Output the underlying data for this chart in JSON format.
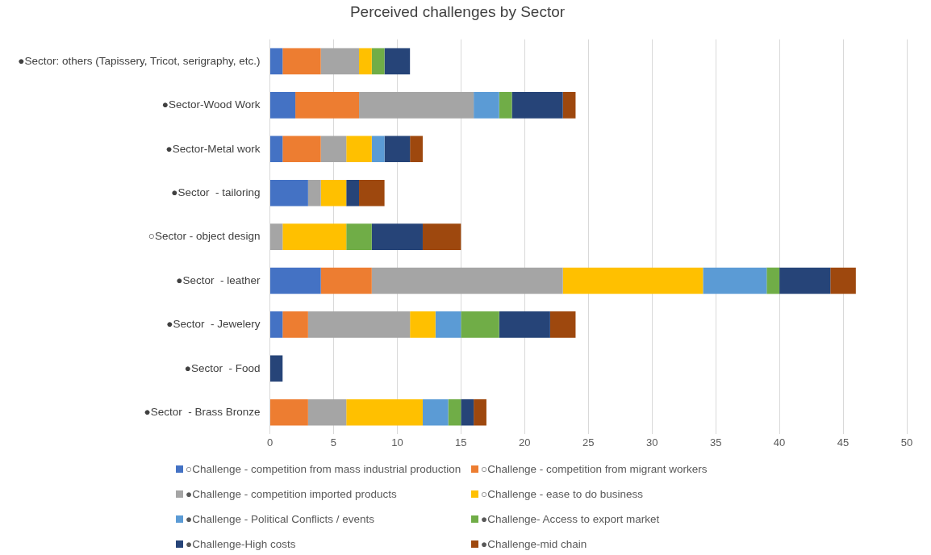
{
  "chart_data": {
    "type": "bar",
    "title": "Perceived challenges by Sector",
    "orientation": "horizontal",
    "stacked": true,
    "grid": "x",
    "legend": "bottom",
    "categories": [
      "●Sector: others (Tapissery, Tricot, serigraphy, etc.)",
      "●Sector-Wood Work",
      "●Sector-Metal work",
      "●Sector  - tailoring",
      "○Sector - object design",
      "●Sector  - leather",
      "●Sector  - Jewelery",
      "●Sector  - Food",
      "●Sector  - Brass Bronze"
    ],
    "xlim": [
      0,
      50
    ],
    "xticks": [
      0,
      5,
      10,
      15,
      20,
      25,
      30,
      35,
      40,
      45,
      50
    ],
    "series": [
      {
        "name": "○Challenge - competition from mass industrial production",
        "color": "#4472c4",
        "values": [
          1,
          2,
          1,
          3,
          0,
          4,
          1,
          0,
          0
        ]
      },
      {
        "name": "○Challenge - competition from migrant workers",
        "color": "#ed7d31",
        "values": [
          3,
          5,
          3,
          0,
          0,
          4,
          2,
          0,
          3
        ]
      },
      {
        "name": "●Challenge - competition imported products",
        "color": "#a5a5a5",
        "values": [
          3,
          9,
          2,
          1,
          1,
          15,
          8,
          0,
          3
        ]
      },
      {
        "name": "○Challenge - ease to do business",
        "color": "#ffc000",
        "values": [
          1,
          0,
          2,
          2,
          5,
          11,
          2,
          0,
          6
        ]
      },
      {
        "name": "●Challenge - Political Conflicts / events",
        "color": "#5b9bd5",
        "values": [
          0,
          2,
          1,
          0,
          0,
          5,
          2,
          0,
          2
        ]
      },
      {
        "name": "●Challenge- Access to export market",
        "color": "#70ad47",
        "values": [
          1,
          1,
          0,
          0,
          2,
          1,
          3,
          0,
          1
        ]
      },
      {
        "name": "●Challenge-High costs",
        "color": "#264478",
        "values": [
          2,
          4,
          2,
          1,
          4,
          4,
          4,
          1,
          1
        ]
      },
      {
        "name": "●Challenge-mid chain",
        "color": "#9e480e",
        "values": [
          0,
          1,
          1,
          2,
          3,
          2,
          2,
          0,
          1
        ]
      }
    ]
  }
}
